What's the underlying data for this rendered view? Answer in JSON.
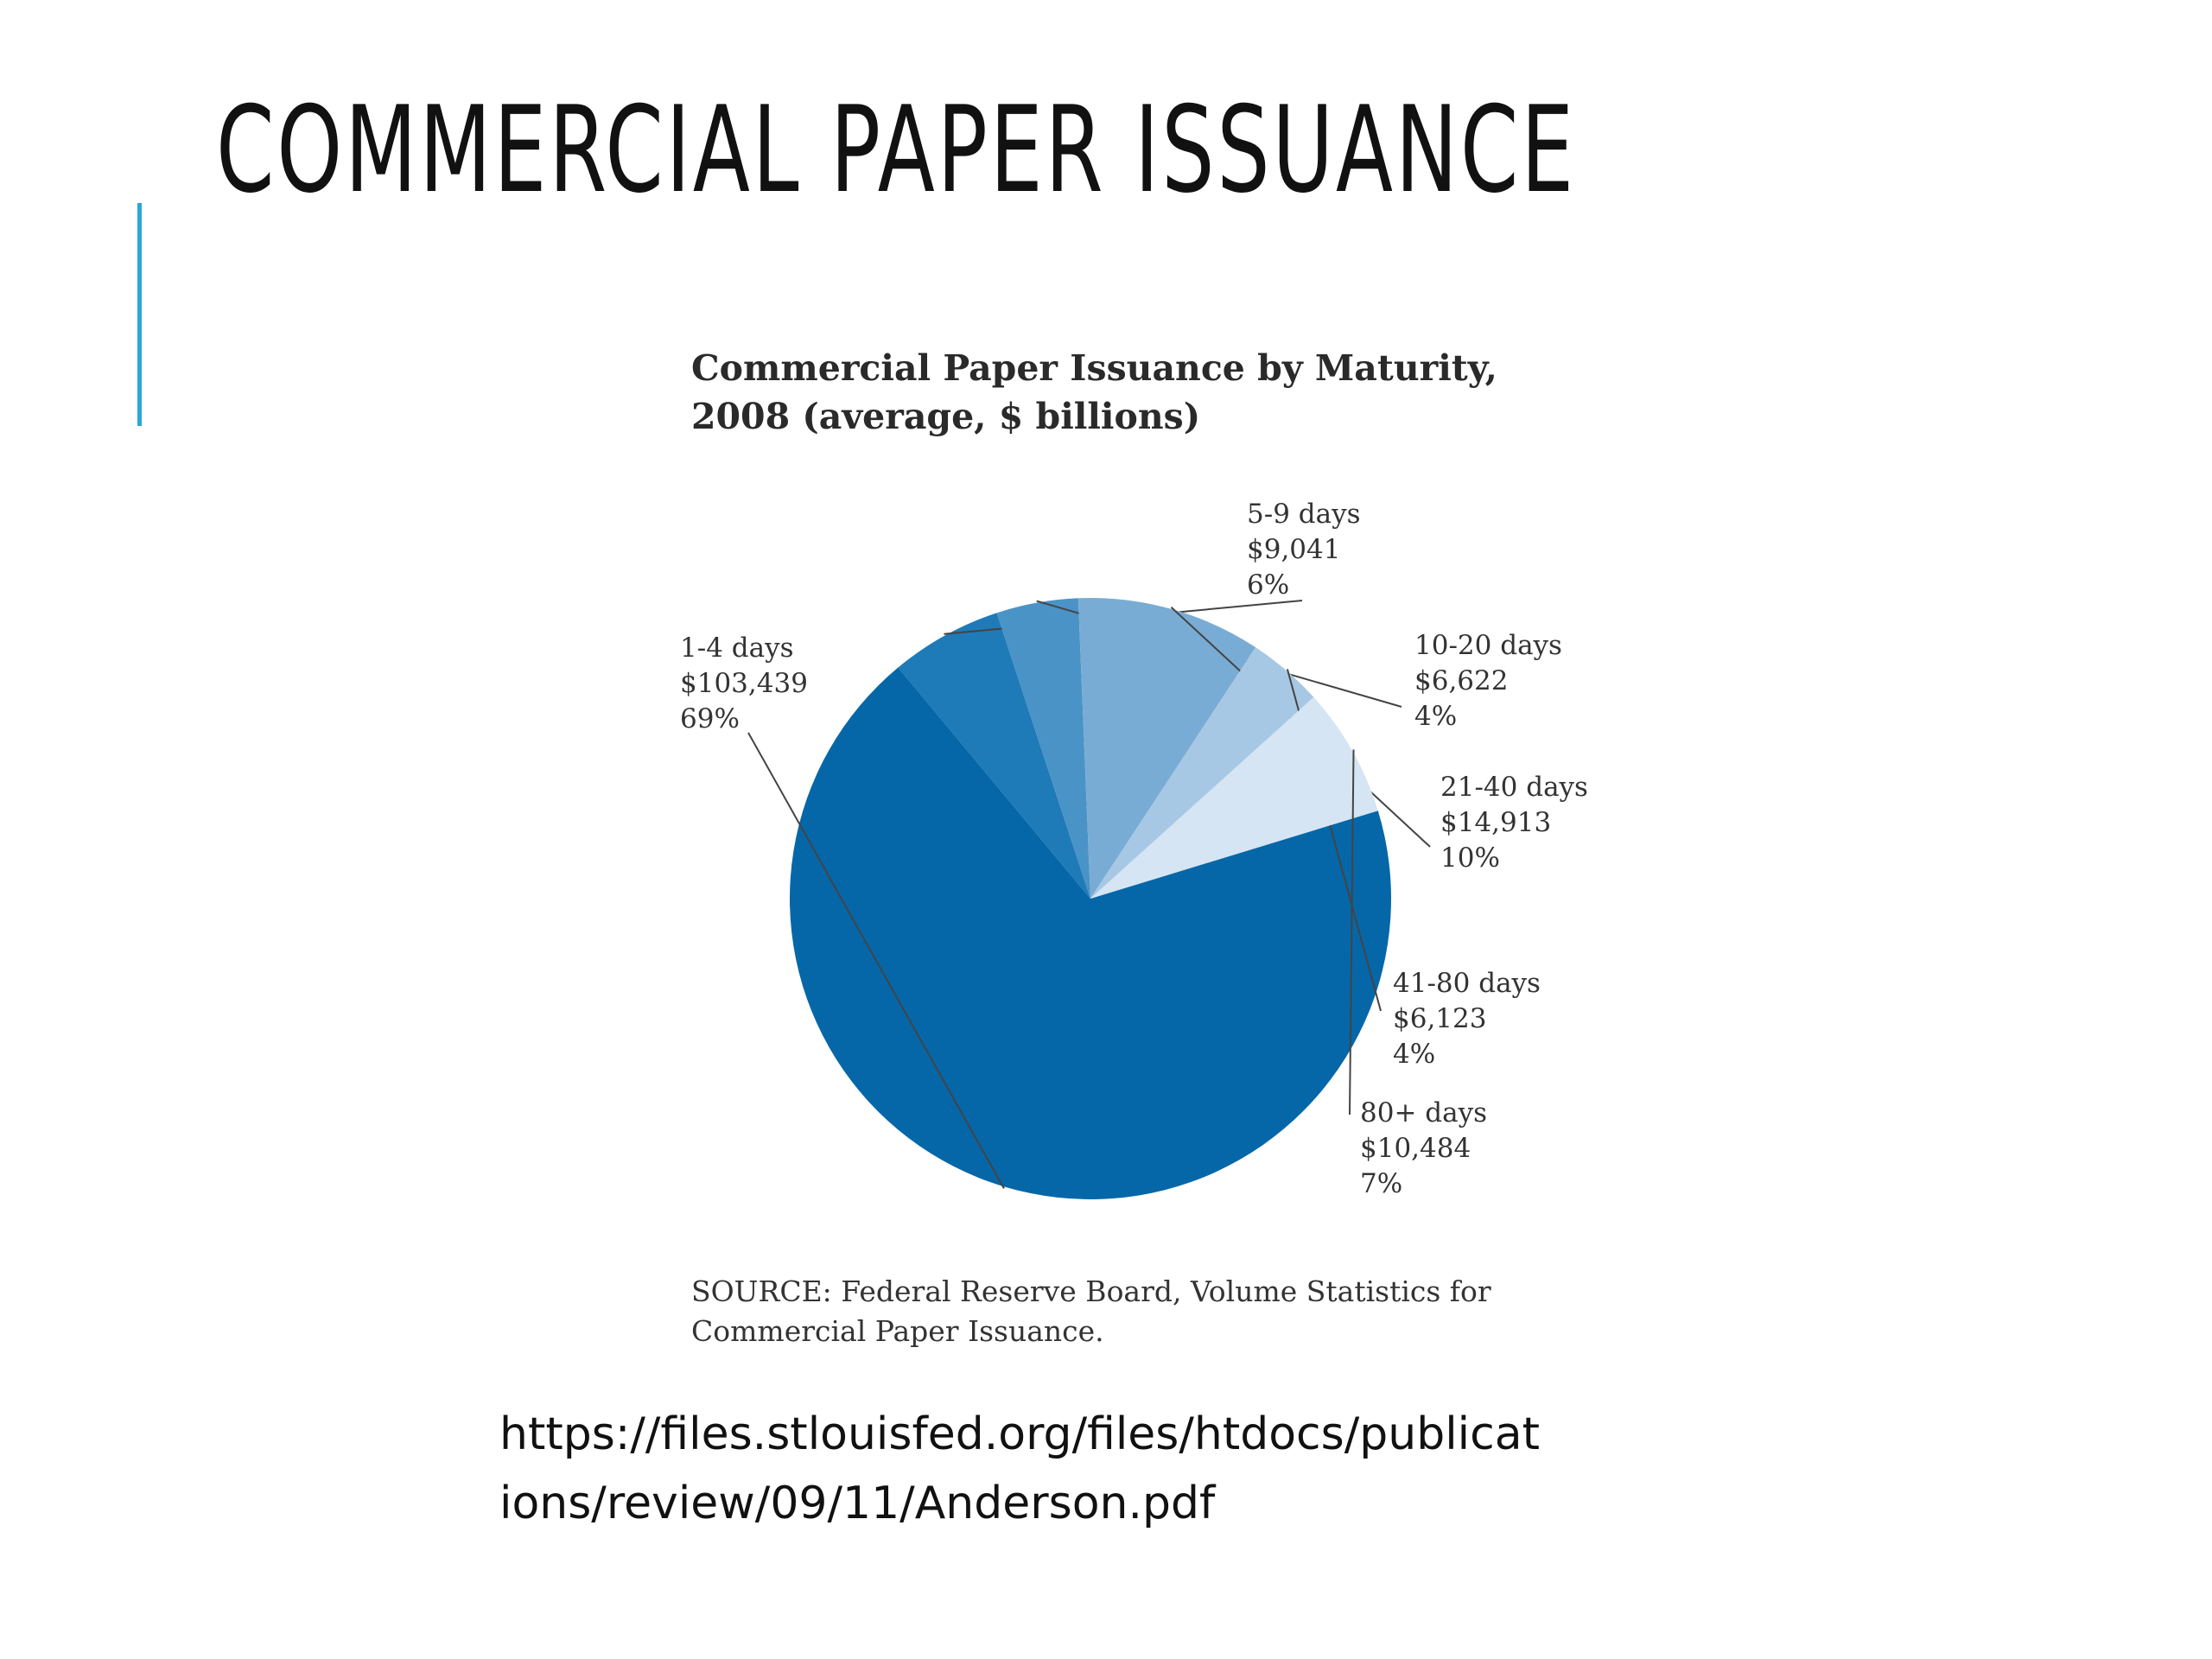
{
  "slide": {
    "title": "COMMERCIAL PAPER ISSUANCE",
    "url_line1": "https://files.stlouisfed.org/files/htdocs/publicat",
    "url_line2": "ions/review/09/11/Anderson.pdf"
  },
  "chart_data": {
    "type": "pie",
    "title_line1": "Commercial Paper Issuance by Maturity,",
    "title_line2": "2008 (average, $ billions)",
    "source_line1": "SOURCE: Federal Reserve Board, Volume Statistics for",
    "source_line2": "Commercial Paper Issuance.",
    "slices": [
      {
        "label": "1-4 days",
        "value": 103439,
        "value_label": "$103,439",
        "percent": "69%",
        "color": "#0567a8"
      },
      {
        "label": "5-9 days",
        "value": 9041,
        "value_label": "$9,041",
        "percent": "6%",
        "color": "#1f7ab8"
      },
      {
        "label": "10-20 days",
        "value": 6622,
        "value_label": "$6,622",
        "percent": "4%",
        "color": "#4a93c7"
      },
      {
        "label": "21-40 days",
        "value": 14913,
        "value_label": "$14,913",
        "percent": "10%",
        "color": "#79acd4"
      },
      {
        "label": "41-80 days",
        "value": 6123,
        "value_label": "$6,123",
        "percent": "4%",
        "color": "#a6c8e4"
      },
      {
        "label": "80+ days",
        "value": 10484,
        "value_label": "$10,484",
        "percent": "7%",
        "color": "#d5e5f3"
      }
    ]
  }
}
